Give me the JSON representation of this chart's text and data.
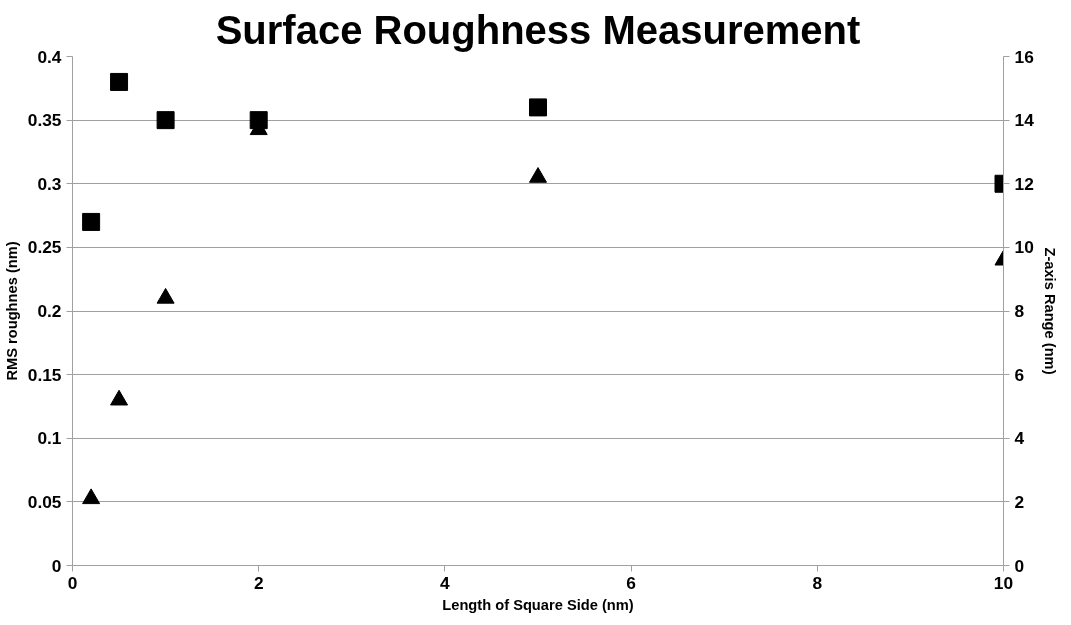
{
  "chart_data": {
    "type": "scatter",
    "title": "Surface Roughness Measurement",
    "xlabel": "Length of Square Side (nm)",
    "ylabel": "RMS roughnes (nm)",
    "y2label": "Z-axis Range (nm)",
    "x": [
      0.2,
      0.5,
      1,
      2,
      5,
      10
    ],
    "series": [
      {
        "color": "#000000",
        "marker": "square",
        "values": [
          0.27,
          0.38,
          0.35,
          0.35,
          0.36,
          0.3
        ]
      },
      {
        "color": "#000000",
        "marker": "triangle",
        "axis": "y2",
        "values": [
          2.1,
          5.2,
          8.4,
          13.7,
          12.2,
          9.6
        ]
      }
    ],
    "xlim": [
      0,
      10
    ],
    "xticks": [
      0,
      2,
      4,
      6,
      8,
      10
    ],
    "ylim": [
      0,
      0.4
    ],
    "yticks": [
      0,
      0.05,
      0.1,
      0.15,
      0.2,
      0.25,
      0.3,
      0.35,
      0.4
    ],
    "y2lim": [
      0,
      16
    ],
    "y2ticks": [
      0,
      2,
      4,
      6,
      8,
      10,
      12,
      14,
      16
    ],
    "grid": "y"
  }
}
